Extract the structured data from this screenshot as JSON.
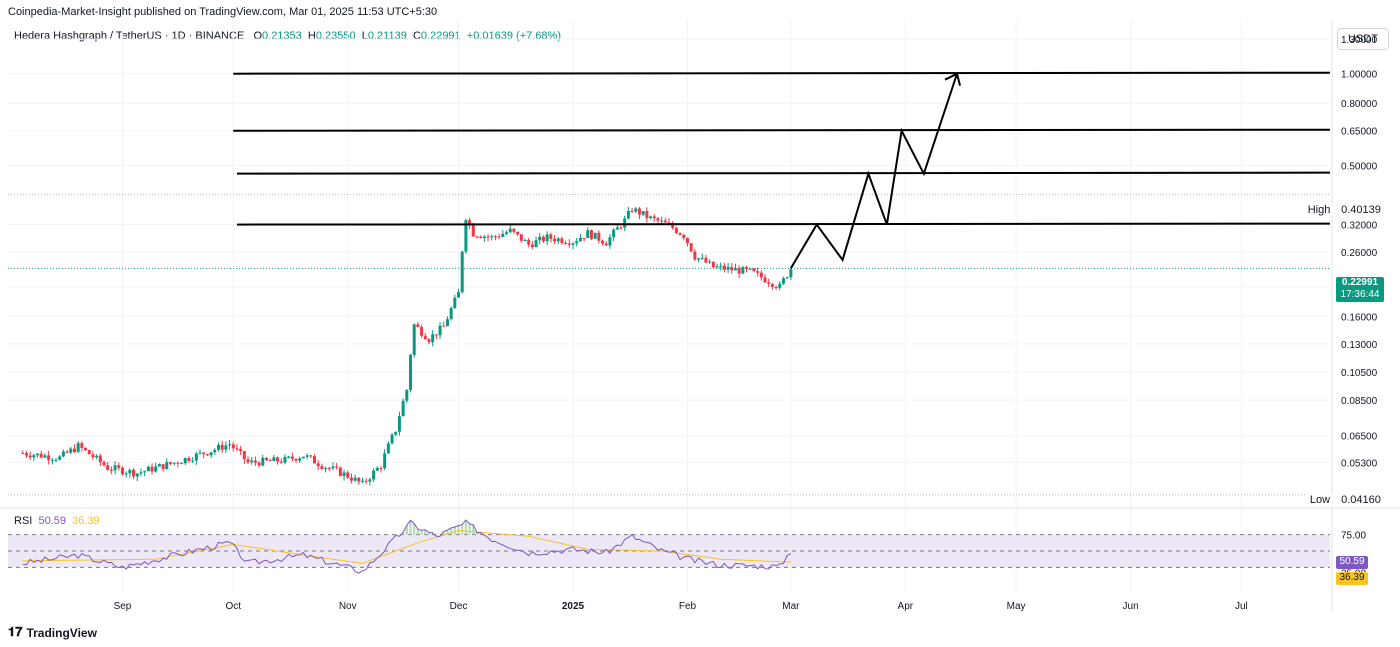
{
  "header": {
    "publisher": "Coinpedia-Market-Insight published on TradingView.com, Mar 01, 2025 11:53 UTC+5:30",
    "symbol": "Hedera Hashgraph / TetherUS · 1D · BINANCE",
    "open_label": "O",
    "open": "0.21353",
    "high_label": "H",
    "high": "0.23550",
    "low_label": "L",
    "low": "0.21139",
    "close_label": "C",
    "close": "0.22991",
    "change": "+0.01639 (+7.68%)",
    "currency": "USDT"
  },
  "price_tags": {
    "high_label": "High",
    "high_value": "0.40139",
    "low_label": "Low",
    "low_value": "0.04160",
    "last_price": "0.22991",
    "countdown": "17:36:44"
  },
  "rsi": {
    "label": "RSI",
    "rsi_value": "50.59",
    "ma_value": "36.39",
    "axis": [
      "75.00",
      "25.00"
    ]
  },
  "footer": {
    "brand": "TradingView",
    "logo_glyph": "𝟏𝟕"
  },
  "colors": {
    "up": "#089981",
    "down": "#f23645",
    "rsi": "#7e57c2",
    "rsi_ma": "#f7c325",
    "band": "#ede7f6",
    "level_line": "#000000",
    "last_price": "#089981"
  },
  "chart_data": {
    "type": "candlestick",
    "scale": "log",
    "price_axis_ticks": [
      1.3,
      1.0,
      0.8,
      0.65,
      0.5,
      0.32,
      0.26,
      0.2,
      0.16,
      0.13,
      0.105,
      0.085,
      0.065,
      0.053
    ],
    "price_axis_labels": [
      "1.30000",
      "1.00000",
      "0.80000",
      "0.65000",
      "0.50000",
      "0.32000",
      "0.26000",
      "0.20000",
      "0.16000",
      "0.13000",
      "0.10500",
      "0.08500",
      "0.06500",
      "0.05300"
    ],
    "time_axis": [
      {
        "label": "Sep",
        "date": "2024-09-01"
      },
      {
        "label": "Oct",
        "date": "2024-10-01"
      },
      {
        "label": "Nov",
        "date": "2024-11-01"
      },
      {
        "label": "Dec",
        "date": "2024-12-01"
      },
      {
        "label": "2025",
        "date": "2025-01-01",
        "bold": true
      },
      {
        "label": "Feb",
        "date": "2025-02-01"
      },
      {
        "label": "Mar",
        "date": "2025-03-01"
      },
      {
        "label": "Apr",
        "date": "2025-04-01"
      },
      {
        "label": "May",
        "date": "2025-05-01"
      },
      {
        "label": "Jun",
        "date": "2025-06-01"
      },
      {
        "label": "Jul",
        "date": "2025-07-01"
      }
    ],
    "price_anchors": [
      [
        "2024-08-05",
        0.057
      ],
      [
        "2024-08-15",
        0.055
      ],
      [
        "2024-08-20",
        0.06
      ],
      [
        "2024-08-28",
        0.051
      ],
      [
        "2024-09-05",
        0.049
      ],
      [
        "2024-09-15",
        0.053
      ],
      [
        "2024-09-25",
        0.058
      ],
      [
        "2024-09-30",
        0.061
      ],
      [
        "2024-10-05",
        0.053
      ],
      [
        "2024-10-15",
        0.054
      ],
      [
        "2024-10-20",
        0.056
      ],
      [
        "2024-10-25",
        0.052
      ],
      [
        "2024-11-01",
        0.048
      ],
      [
        "2024-11-05",
        0.045
      ],
      [
        "2024-11-10",
        0.052
      ],
      [
        "2024-11-14",
        0.068
      ],
      [
        "2024-11-17",
        0.092
      ],
      [
        "2024-11-19",
        0.15
      ],
      [
        "2024-11-23",
        0.135
      ],
      [
        "2024-11-27",
        0.148
      ],
      [
        "2024-12-01",
        0.19
      ],
      [
        "2024-12-03",
        0.34
      ],
      [
        "2024-12-05",
        0.3
      ],
      [
        "2024-12-10",
        0.29
      ],
      [
        "2024-12-15",
        0.305
      ],
      [
        "2024-12-20",
        0.275
      ],
      [
        "2024-12-25",
        0.29
      ],
      [
        "2025-01-01",
        0.282
      ],
      [
        "2025-01-05",
        0.3
      ],
      [
        "2025-01-10",
        0.28
      ],
      [
        "2025-01-15",
        0.33
      ],
      [
        "2025-01-17",
        0.36
      ],
      [
        "2025-01-22",
        0.335
      ],
      [
        "2025-01-27",
        0.318
      ],
      [
        "2025-01-31",
        0.295
      ],
      [
        "2025-02-03",
        0.252
      ],
      [
        "2025-02-08",
        0.232
      ],
      [
        "2025-02-13",
        0.228
      ],
      [
        "2025-02-18",
        0.224
      ],
      [
        "2025-02-22",
        0.212
      ],
      [
        "2025-02-26",
        0.2
      ],
      [
        "2025-03-01",
        0.22991
      ]
    ],
    "levels": [
      1.0,
      0.65,
      0.47,
      0.32
    ],
    "projection": [
      [
        "2025-03-01",
        0.23
      ],
      [
        "2025-03-08",
        0.32
      ],
      [
        "2025-03-15",
        0.245
      ],
      [
        "2025-03-22",
        0.47
      ],
      [
        "2025-03-27",
        0.32
      ],
      [
        "2025-03-31",
        0.65
      ],
      [
        "2025-04-06",
        0.47
      ],
      [
        "2025-04-15",
        1.0
      ]
    ],
    "rsi_anchors": [
      [
        "2024-08-05",
        35
      ],
      [
        "2024-08-20",
        45
      ],
      [
        "2024-09-01",
        30
      ],
      [
        "2024-09-20",
        50
      ],
      [
        "2024-09-30",
        60
      ],
      [
        "2024-10-05",
        35
      ],
      [
        "2024-10-20",
        45
      ],
      [
        "2024-11-01",
        30
      ],
      [
        "2024-11-05",
        25
      ],
      [
        "2024-11-15",
        70
      ],
      [
        "2024-11-18",
        84
      ],
      [
        "2024-11-25",
        68
      ],
      [
        "2024-12-03",
        84
      ],
      [
        "2024-12-10",
        65
      ],
      [
        "2024-12-20",
        48
      ],
      [
        "2025-01-01",
        52
      ],
      [
        "2025-01-10",
        48
      ],
      [
        "2025-01-17",
        68
      ],
      [
        "2025-01-25",
        50
      ],
      [
        "2025-02-03",
        38
      ],
      [
        "2025-02-10",
        33
      ],
      [
        "2025-02-20",
        32
      ],
      [
        "2025-02-26",
        31
      ],
      [
        "2025-03-01",
        50.59
      ]
    ],
    "rsi_ma_anchors": [
      [
        "2024-08-05",
        38
      ],
      [
        "2024-09-10",
        40
      ],
      [
        "2024-10-01",
        58
      ],
      [
        "2024-10-20",
        45
      ],
      [
        "2024-11-05",
        35
      ],
      [
        "2024-11-20",
        60
      ],
      [
        "2024-12-01",
        75
      ],
      [
        "2024-12-20",
        68
      ],
      [
        "2025-01-05",
        52
      ],
      [
        "2025-01-25",
        50
      ],
      [
        "2025-02-10",
        40
      ],
      [
        "2025-03-01",
        36.39
      ]
    ]
  }
}
